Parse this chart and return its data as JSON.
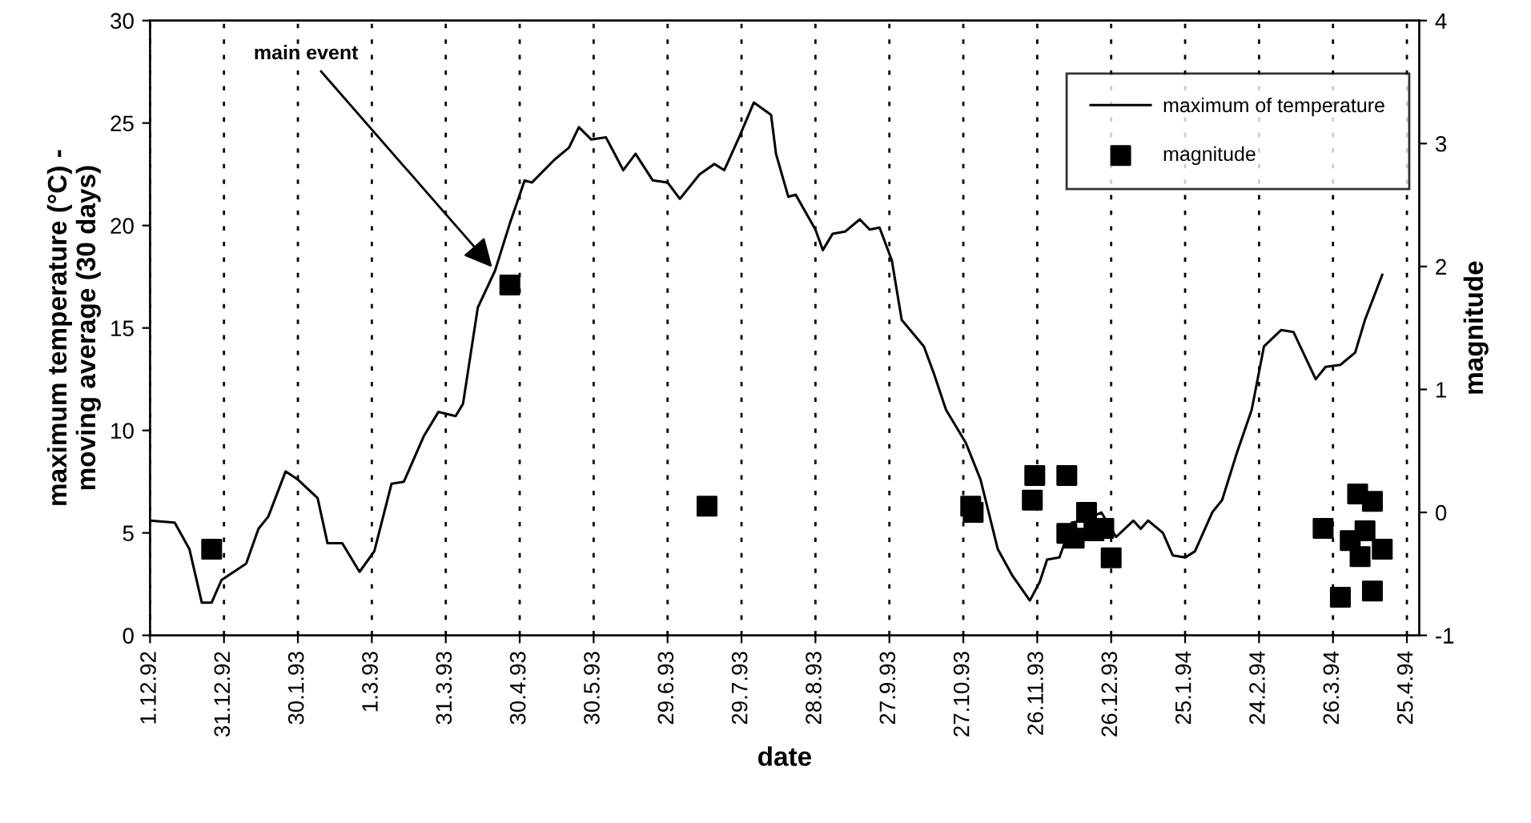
{
  "chart_data": {
    "type": "line",
    "xlabel": "date",
    "ylabel": "maximum temperature (°C) -\nmoving average (30 days)",
    "y2label": "magnitude",
    "xlim": [
      "1992-12-01",
      "1994-04-30"
    ],
    "xticks": [
      {
        "value": "1992-12-01",
        "label": "1.12.92"
      },
      {
        "value": "1992-12-31",
        "label": "31.12.92"
      },
      {
        "value": "1993-01-30",
        "label": "30.1.93"
      },
      {
        "value": "1993-03-01",
        "label": "1.3.93"
      },
      {
        "value": "1993-03-31",
        "label": "31.3.93"
      },
      {
        "value": "1993-04-30",
        "label": "30.4.93"
      },
      {
        "value": "1993-05-30",
        "label": "30.5.93"
      },
      {
        "value": "1993-06-29",
        "label": "29.6.93"
      },
      {
        "value": "1993-07-29",
        "label": "29.7.93"
      },
      {
        "value": "1993-08-28",
        "label": "28.8.93"
      },
      {
        "value": "1993-09-27",
        "label": "27.9.93"
      },
      {
        "value": "1993-10-27",
        "label": "27.10.93"
      },
      {
        "value": "1993-11-26",
        "label": "26.11.93"
      },
      {
        "value": "1993-12-26",
        "label": "26.12.93"
      },
      {
        "value": "1994-01-25",
        "label": "25.1.94"
      },
      {
        "value": "1994-02-24",
        "label": "24.2.94"
      },
      {
        "value": "1994-03-26",
        "label": "26.3.94"
      },
      {
        "value": "1994-04-25",
        "label": "25.4.94"
      }
    ],
    "ylim": [
      0,
      30
    ],
    "yticks": [
      0,
      5,
      10,
      15,
      20,
      25,
      30
    ],
    "y2lim": [
      -1,
      4
    ],
    "y2ticks": [
      -1,
      0,
      1,
      2,
      3,
      4
    ],
    "grid": "x",
    "legend": "top right",
    "annotations": [
      {
        "text": "main event",
        "x": "1993-04-20",
        "y": 17.8
      }
    ],
    "series": [
      {
        "name": "maximum of temperature",
        "color": "#000000",
        "marker": "none",
        "line_style": "solid",
        "x": [
          "1992-12-01",
          "1992-12-11",
          "1992-12-17",
          "1992-12-22",
          "1992-12-26",
          "1992-12-30",
          "1993-01-09",
          "1993-01-14",
          "1993-01-18",
          "1993-01-25",
          "1993-01-30",
          "1993-02-07",
          "1993-02-11",
          "1993-02-17",
          "1993-02-24",
          "1993-03-02",
          "1993-03-09",
          "1993-03-14",
          "1993-03-22",
          "1993-03-28",
          "1993-04-04",
          "1993-04-07",
          "1993-04-13",
          "1993-04-20",
          "1993-04-26",
          "1993-05-02",
          "1993-05-05",
          "1993-05-14",
          "1993-05-20",
          "1993-05-24",
          "1993-05-29",
          "1993-06-04",
          "1993-06-11",
          "1993-06-16",
          "1993-06-23",
          "1993-06-29",
          "1993-07-04",
          "1993-07-12",
          "1993-07-18",
          "1993-07-22",
          "1993-07-28",
          "1993-08-03",
          "1993-08-10",
          "1993-08-12",
          "1993-08-17",
          "1993-08-20",
          "1993-08-28",
          "1993-08-31",
          "1993-09-04",
          "1993-09-09",
          "1993-09-15",
          "1993-09-19",
          "1993-09-23",
          "1993-09-28",
          "1993-10-02",
          "1993-10-11",
          "1993-10-15",
          "1993-10-20",
          "1993-10-28",
          "1993-11-03",
          "1993-11-10",
          "1993-11-16",
          "1993-11-23",
          "1993-11-27",
          "1993-11-30",
          "1993-12-05",
          "1993-12-10",
          "1993-12-15",
          "1993-12-22",
          "1993-12-28",
          "1994-01-04",
          "1994-01-07",
          "1994-01-10",
          "1994-01-16",
          "1994-01-20",
          "1994-01-25",
          "1994-01-29",
          "1994-02-05",
          "1994-02-09",
          "1994-02-15",
          "1994-02-21",
          "1994-02-26",
          "1994-03-05",
          "1994-03-10",
          "1994-03-19",
          "1994-03-23",
          "1994-03-29",
          "1994-04-04",
          "1994-04-08",
          "1994-04-15"
        ],
        "values": [
          5.6,
          5.5,
          4.2,
          1.6,
          1.6,
          2.7,
          3.5,
          5.2,
          5.8,
          8.0,
          7.6,
          6.7,
          4.5,
          4.5,
          3.1,
          4.1,
          7.4,
          7.5,
          9.7,
          10.9,
          10.7,
          11.3,
          16.0,
          17.8,
          20.1,
          22.2,
          22.1,
          23.2,
          23.8,
          24.8,
          24.2,
          24.3,
          22.7,
          23.5,
          22.2,
          22.1,
          21.3,
          22.5,
          23.0,
          22.7,
          24.3,
          26.0,
          25.4,
          23.5,
          21.4,
          21.5,
          19.8,
          18.8,
          19.6,
          19.7,
          20.3,
          19.8,
          19.9,
          18.3,
          15.4,
          14.1,
          12.8,
          11.0,
          9.4,
          7.6,
          4.2,
          2.9,
          1.7,
          2.6,
          3.7,
          3.8,
          5.5,
          5.6,
          6.0,
          4.8,
          5.6,
          5.2,
          5.6,
          5.0,
          3.9,
          3.8,
          4.1,
          6.0,
          6.6,
          8.9,
          11.0,
          14.1,
          14.9,
          14.8,
          12.5,
          13.1,
          13.2,
          13.8,
          15.4,
          17.6
        ]
      },
      {
        "name": "magnitude",
        "type": "scatter",
        "axis": "y2",
        "color": "#000000",
        "marker": "square",
        "x": [
          "1992-12-26",
          "1993-04-26",
          "1993-07-15",
          "1993-10-30",
          "1993-10-31",
          "1993-11-24",
          "1993-11-25",
          "1993-12-08",
          "1993-12-08",
          "1993-12-11",
          "1993-12-16",
          "1993-12-19",
          "1993-12-23",
          "1993-12-26",
          "1994-03-22",
          "1994-03-29",
          "1994-04-02",
          "1994-04-05",
          "1994-04-06",
          "1994-04-08",
          "1994-04-11",
          "1994-04-11",
          "1994-04-15"
        ],
        "values": [
          -0.3,
          1.85,
          0.05,
          0.05,
          0.0,
          0.1,
          0.3,
          0.3,
          -0.17,
          -0.21,
          0.0,
          -0.15,
          -0.13,
          -0.37,
          -0.13,
          -0.69,
          -0.23,
          0.15,
          -0.36,
          -0.15,
          0.09,
          -0.64,
          -0.3
        ]
      }
    ]
  }
}
